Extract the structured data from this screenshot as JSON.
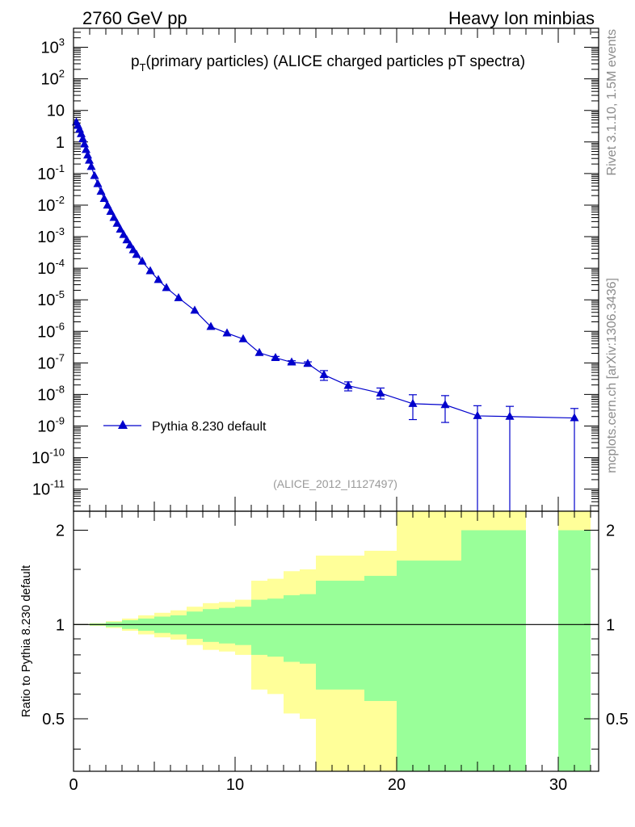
{
  "header": {
    "left": "2760 GeV pp",
    "right": "Heavy Ion minbias"
  },
  "title_main": "p",
  "title_sub": "T",
  "title_rest": "(primary particles) (ALICE charged particles pT spectra)",
  "side_text_top": "Rivet 3.1.10,  1.5M events",
  "side_text_bottom": "mcplots.cern.ch [arXiv:1306.3436]",
  "analysis_label": "(ALICE_2012_I1127497)",
  "ratio_ylabel": "Ratio to Pythia 8.230 default",
  "colors": {
    "series": "#0000cc",
    "band_inner": "#99ff99",
    "band_outer": "#ffff99",
    "axis": "#000000"
  },
  "chart_data": [
    {
      "type": "line",
      "scale": "log-y",
      "xlim": [
        0,
        32.5
      ],
      "ylim": [
        2e-12,
        4000
      ],
      "x_ticks": [
        0,
        10,
        20,
        30
      ],
      "y_ticks": [
        {
          "value": 1e-11,
          "base": "10",
          "exp": "-11"
        },
        {
          "value": 1e-10,
          "base": "10",
          "exp": "-10"
        },
        {
          "value": 1e-09,
          "base": "10",
          "exp": "-9"
        },
        {
          "value": 1e-08,
          "base": "10",
          "exp": "-8"
        },
        {
          "value": 1e-07,
          "base": "10",
          "exp": "-7"
        },
        {
          "value": 1e-06,
          "base": "10",
          "exp": "-6"
        },
        {
          "value": 1e-05,
          "base": "10",
          "exp": "-5"
        },
        {
          "value": 0.0001,
          "base": "10",
          "exp": "-4"
        },
        {
          "value": 0.001,
          "base": "10",
          "exp": "-3"
        },
        {
          "value": 0.01,
          "base": "10",
          "exp": "-2"
        },
        {
          "value": 0.1,
          "base": "10",
          "exp": "-1"
        },
        {
          "value": 1,
          "base": "1",
          "exp": ""
        },
        {
          "value": 10,
          "base": "10",
          "exp": ""
        },
        {
          "value": 100,
          "base": "10",
          "exp": "2"
        },
        {
          "value": 1000,
          "base": "10",
          "exp": "3"
        }
      ],
      "legend": {
        "placement": "lower-left",
        "label": "Pythia 8.230 default"
      },
      "series": [
        {
          "name": "Pythia 8.230 default",
          "points": [
            {
              "x": 0.175,
              "y": 4.2
            },
            {
              "x": 0.275,
              "y": 3.3
            },
            {
              "x": 0.375,
              "y": 2.5
            },
            {
              "x": 0.475,
              "y": 1.8
            },
            {
              "x": 0.575,
              "y": 1.25
            },
            {
              "x": 0.675,
              "y": 0.85
            },
            {
              "x": 0.775,
              "y": 0.57
            },
            {
              "x": 0.875,
              "y": 0.38
            },
            {
              "x": 0.975,
              "y": 0.26
            },
            {
              "x": 1.1,
              "y": 0.165
            },
            {
              "x": 1.3,
              "y": 0.085
            },
            {
              "x": 1.5,
              "y": 0.047
            },
            {
              "x": 1.7,
              "y": 0.027
            },
            {
              "x": 1.9,
              "y": 0.016
            },
            {
              "x": 2.1,
              "y": 0.0098
            },
            {
              "x": 2.3,
              "y": 0.0062
            },
            {
              "x": 2.5,
              "y": 0.004
            },
            {
              "x": 2.7,
              "y": 0.0026
            },
            {
              "x": 2.9,
              "y": 0.0017
            },
            {
              "x": 3.1,
              "y": 0.00115
            },
            {
              "x": 3.3,
              "y": 0.00078
            },
            {
              "x": 3.5,
              "y": 0.00054
            },
            {
              "x": 3.7,
              "y": 0.00038
            },
            {
              "x": 3.9,
              "y": 0.00027
            },
            {
              "x": 4.25,
              "y": 0.000165
            },
            {
              "x": 4.75,
              "y": 8.2e-05
            },
            {
              "x": 5.25,
              "y": 4.3e-05
            },
            {
              "x": 5.75,
              "y": 2.4e-05
            },
            {
              "x": 6.5,
              "y": 1.15e-05
            },
            {
              "x": 7.5,
              "y": 4.6e-06
            },
            {
              "x": 8.5,
              "y": 1.4e-06
            },
            {
              "x": 9.5,
              "y": 8.8e-07
            },
            {
              "x": 10.5,
              "y": 5.7e-07
            },
            {
              "x": 11.5,
              "y": 2.1e-07
            },
            {
              "x": 12.5,
              "y": 1.45e-07,
              "err": [
                1.3e-07,
                1.6e-07
              ]
            },
            {
              "x": 13.5,
              "y": 1.05e-07,
              "err": [
                9.4e-08,
                1.17e-07
              ]
            },
            {
              "x": 14.5,
              "y": 9.5e-08,
              "err": [
                8.2e-08,
                1.08e-07
              ]
            },
            {
              "x": 15.5,
              "y": 4.2e-08,
              "err": [
                2.8e-08,
                5.7e-08
              ]
            },
            {
              "x": 17,
              "y": 1.9e-08,
              "err": [
                1.3e-08,
                2.5e-08
              ]
            },
            {
              "x": 19,
              "y": 1.1e-08,
              "err": [
                7.2e-09,
                1.6e-08
              ]
            },
            {
              "x": 21,
              "y": 5.1e-09,
              "err": [
                1.6e-09,
                9.8e-09
              ]
            },
            {
              "x": 23,
              "y": 4.7e-09,
              "err": [
                1.3e-09,
                9.2e-09
              ]
            },
            {
              "x": 25,
              "y": 2.1e-09,
              "err": [
                0,
                4.4e-09
              ]
            },
            {
              "x": 27,
              "y": 2e-09,
              "err": [
                0,
                4.2e-09
              ]
            },
            {
              "x": 31,
              "y": 1.8e-09,
              "err": [
                0,
                3.6e-09
              ]
            }
          ]
        }
      ]
    },
    {
      "type": "area",
      "xlim": [
        0,
        32.5
      ],
      "ylim": [
        0.34,
        2.3
      ],
      "y_ticks": [
        0.5,
        1,
        2
      ],
      "x_ticks": [
        0,
        10,
        20,
        30
      ],
      "reference_line": 1,
      "bands": [
        {
          "x0": 0,
          "x1": 1,
          "in_lo": 0.998,
          "in_hi": 1.002,
          "out_lo": 0.997,
          "out_hi": 1.003
        },
        {
          "x0": 1,
          "x1": 2,
          "in_lo": 0.993,
          "in_hi": 1.007,
          "out_lo": 0.99,
          "out_hi": 1.01
        },
        {
          "x0": 2,
          "x1": 3,
          "in_lo": 0.982,
          "in_hi": 1.018,
          "out_lo": 0.975,
          "out_hi": 1.025
        },
        {
          "x0": 3,
          "x1": 4,
          "in_lo": 0.968,
          "in_hi": 1.032,
          "out_lo": 0.955,
          "out_hi": 1.045
        },
        {
          "x0": 4,
          "x1": 5,
          "in_lo": 0.955,
          "in_hi": 1.045,
          "out_lo": 0.93,
          "out_hi": 1.07
        },
        {
          "x0": 5,
          "x1": 6,
          "in_lo": 0.94,
          "in_hi": 1.06,
          "out_lo": 0.91,
          "out_hi": 1.09
        },
        {
          "x0": 6,
          "x1": 7,
          "in_lo": 0.93,
          "in_hi": 1.07,
          "out_lo": 0.895,
          "out_hi": 1.11
        },
        {
          "x0": 7,
          "x1": 8,
          "in_lo": 0.9,
          "in_hi": 1.1,
          "out_lo": 0.86,
          "out_hi": 1.14
        },
        {
          "x0": 8,
          "x1": 9,
          "in_lo": 0.88,
          "in_hi": 1.12,
          "out_lo": 0.83,
          "out_hi": 1.17
        },
        {
          "x0": 9,
          "x1": 10,
          "in_lo": 0.87,
          "in_hi": 1.13,
          "out_lo": 0.82,
          "out_hi": 1.18
        },
        {
          "x0": 10,
          "x1": 11,
          "in_lo": 0.86,
          "in_hi": 1.14,
          "out_lo": 0.8,
          "out_hi": 1.2
        },
        {
          "x0": 11,
          "x1": 12,
          "in_lo": 0.8,
          "in_hi": 1.2,
          "out_lo": 0.62,
          "out_hi": 1.38
        },
        {
          "x0": 12,
          "x1": 13,
          "in_lo": 0.79,
          "in_hi": 1.21,
          "out_lo": 0.6,
          "out_hi": 1.4
        },
        {
          "x0": 13,
          "x1": 14,
          "in_lo": 0.76,
          "in_hi": 1.24,
          "out_lo": 0.52,
          "out_hi": 1.48
        },
        {
          "x0": 14,
          "x1": 15,
          "in_lo": 0.75,
          "in_hi": 1.25,
          "out_lo": 0.5,
          "out_hi": 1.5
        },
        {
          "x0": 15,
          "x1": 18,
          "in_lo": 0.62,
          "in_hi": 1.38,
          "out_lo": 0.34,
          "out_hi": 1.66
        },
        {
          "x0": 18,
          "x1": 20,
          "in_lo": 0.57,
          "in_hi": 1.43,
          "out_lo": 0.34,
          "out_hi": 1.72
        },
        {
          "x0": 20,
          "x1": 24,
          "in_lo": 0.34,
          "in_hi": 1.6,
          "out_lo": 0.34,
          "out_hi": 2.3
        },
        {
          "x0": 24,
          "x1": 28,
          "in_lo": 0.34,
          "in_hi": 2.0,
          "out_lo": 0.34,
          "out_hi": 2.3
        },
        {
          "x0": 30,
          "x1": 32,
          "in_lo": 0.34,
          "in_hi": 2.0,
          "out_lo": 0.34,
          "out_hi": 2.3
        }
      ]
    }
  ]
}
